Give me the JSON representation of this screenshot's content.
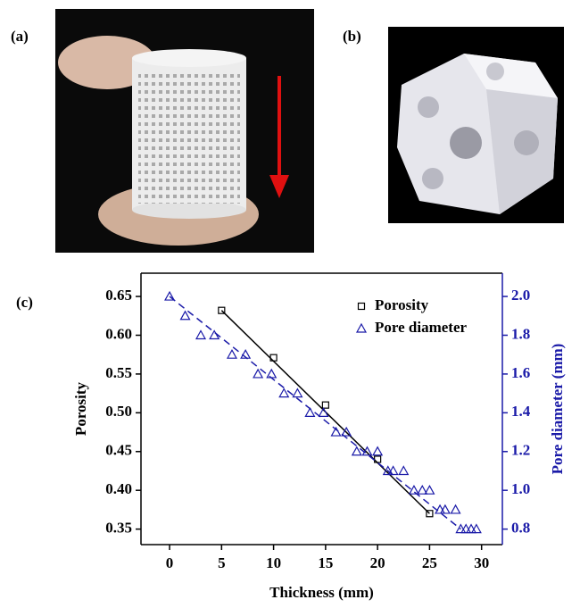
{
  "panels": {
    "a": "(a)",
    "b": "(b)",
    "c": "(c)"
  },
  "chart_data": {
    "type": "scatter",
    "xlabel": "Thickness (mm)",
    "ylabel": "Porosity",
    "y2label": "Pore diameter (mm)",
    "xlim": [
      -2.75,
      32
    ],
    "xticks": [
      0,
      5,
      10,
      15,
      20,
      25,
      30
    ],
    "ylim": [
      0.33,
      0.68
    ],
    "yticks": [
      0.35,
      {
        "value": 0.4,
        "label": "0.40"
      },
      0.45,
      {
        "value": 0.5,
        "label": "0.50"
      },
      0.55,
      {
        "value": 0.6,
        "label": "0.60"
      },
      0.65
    ],
    "y2lim": [
      0.72,
      2.12
    ],
    "y2ticks": [
      0.8,
      {
        "value": 1.0,
        "label": "1.0"
      },
      1.2,
      1.4,
      1.6,
      1.8,
      {
        "value": 2.0,
        "label": "2.0"
      }
    ],
    "y2color": "#1a1aa8",
    "legend": "upper right",
    "series": [
      {
        "name": "Porosity",
        "color": "#000000",
        "marker": "square",
        "x": [
          5,
          10,
          15,
          20,
          25
        ],
        "values": [
          0.632,
          0.571,
          0.51,
          0.44,
          0.37
        ],
        "fit": {
          "x": [
            5,
            25
          ],
          "values": [
            0.632,
            0.37
          ],
          "dash": false
        }
      },
      {
        "name": "Pore diameter",
        "color": "#1a1aa8",
        "marker": "triangle",
        "axis": "y2",
        "x": [
          0,
          1.5,
          3,
          4.3,
          6,
          7.3,
          8.5,
          9.8,
          11,
          12.3,
          13.5,
          14.8,
          16,
          17,
          18,
          19,
          20,
          21,
          21.5,
          22.5,
          23.5,
          24.3,
          25,
          26,
          26.5,
          27.5,
          28,
          28.5,
          29,
          29.5
        ],
        "values": [
          2.0,
          1.9,
          1.8,
          1.8,
          1.7,
          1.7,
          1.6,
          1.6,
          1.5,
          1.5,
          1.4,
          1.4,
          1.3,
          1.3,
          1.2,
          1.2,
          1.2,
          1.1,
          1.1,
          1.1,
          1.0,
          1.0,
          1.0,
          0.9,
          0.9,
          0.9,
          0.8,
          0.8,
          0.8,
          0.8
        ],
        "fit": {
          "x": [
            0,
            28
          ],
          "values": [
            2.0,
            0.8
          ],
          "dash": true
        }
      }
    ]
  }
}
